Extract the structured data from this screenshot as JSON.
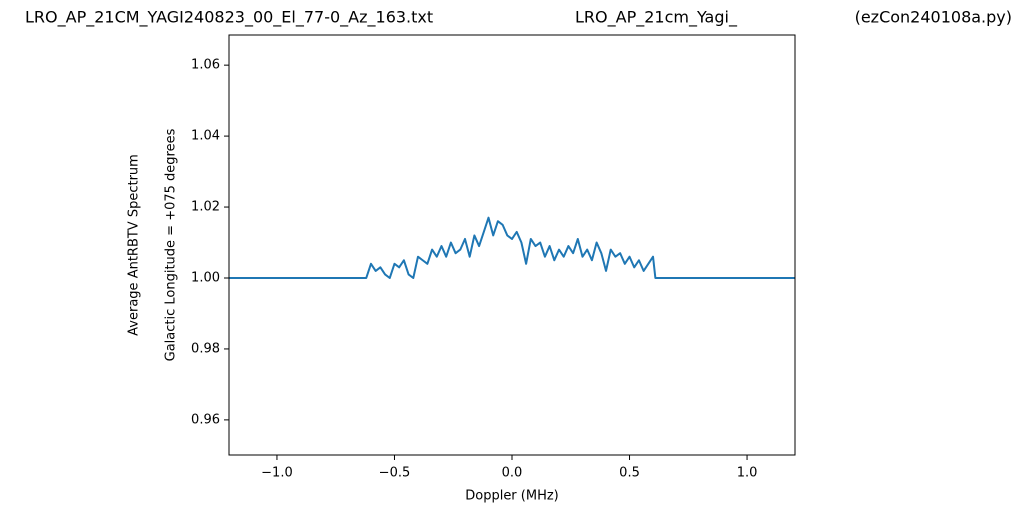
{
  "chart_data": {
    "type": "line",
    "titles": [
      "LRO_AP_21CM_YAGI240823_00_El_77-0_Az_163.txt",
      "LRO_AP_21cm_Yagi_",
      "(ezCon240108a.py)"
    ],
    "x_label": "Doppler (MHz)",
    "y_label": [
      "Average AntRBTV Spectrum",
      "Galactic Longitude = +075 degrees"
    ],
    "x": [
      -1.204,
      -0.62,
      -0.6,
      -0.58,
      -0.56,
      -0.54,
      -0.52,
      -0.5,
      -0.48,
      -0.46,
      -0.44,
      -0.42,
      -0.4,
      -0.38,
      -0.36,
      -0.34,
      -0.32,
      -0.3,
      -0.28,
      -0.26,
      -0.24,
      -0.22,
      -0.2,
      -0.18,
      -0.16,
      -0.14,
      -0.12,
      -0.1,
      -0.08,
      -0.06,
      -0.04,
      -0.02,
      0.0,
      0.02,
      0.04,
      0.06,
      0.08,
      0.1,
      0.12,
      0.14,
      0.16,
      0.18,
      0.2,
      0.22,
      0.24,
      0.26,
      0.28,
      0.3,
      0.32,
      0.34,
      0.36,
      0.38,
      0.4,
      0.42,
      0.44,
      0.46,
      0.48,
      0.5,
      0.52,
      0.54,
      0.56,
      0.58,
      0.6,
      0.61,
      1.204
    ],
    "series": [
      {
        "color": "#1f77b4",
        "values": [
          1.0,
          1.0,
          1.004,
          1.002,
          1.003,
          1.001,
          1.0,
          1.004,
          1.003,
          1.005,
          1.001,
          1.0,
          1.006,
          1.005,
          1.004,
          1.008,
          1.006,
          1.009,
          1.006,
          1.01,
          1.007,
          1.008,
          1.011,
          1.006,
          1.012,
          1.009,
          1.013,
          1.017,
          1.012,
          1.016,
          1.015,
          1.012,
          1.011,
          1.013,
          1.01,
          1.004,
          1.011,
          1.009,
          1.01,
          1.006,
          1.009,
          1.005,
          1.008,
          1.006,
          1.009,
          1.007,
          1.011,
          1.006,
          1.008,
          1.005,
          1.01,
          1.007,
          1.002,
          1.008,
          1.006,
          1.007,
          1.004,
          1.006,
          1.003,
          1.005,
          1.002,
          1.004,
          1.006,
          1.0,
          1.0
        ]
      }
    ],
    "xlim": [
      -1.204,
      1.204
    ],
    "ylim": [
      0.9501,
      1.0685
    ],
    "xticks": [
      {
        "value": -1.0,
        "label": "−1.0"
      },
      {
        "value": -0.5,
        "label": "−0.5"
      },
      {
        "value": 0.0,
        "label": "0.0"
      },
      0.5,
      {
        "value": 1.0,
        "label": "1.0"
      }
    ],
    "yticks": [
      0.96,
      0.98,
      {
        "value": 1.0,
        "label": "1.00"
      },
      1.02,
      1.04,
      1.06
    ],
    "grid": false
  }
}
